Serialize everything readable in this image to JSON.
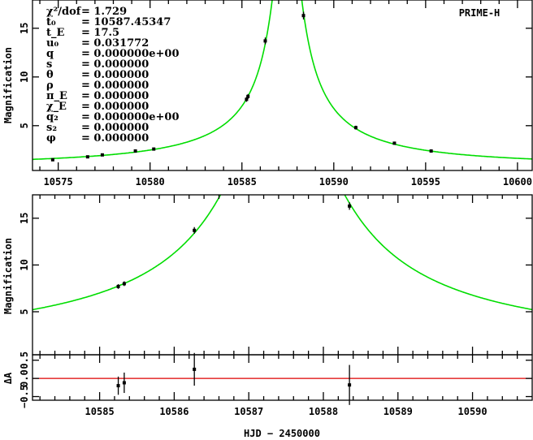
{
  "chart_data": [
    {
      "type": "line",
      "name": "full light curve",
      "title": "PRIME-H",
      "ylabel": "Magnification",
      "xlim": [
        10573.6,
        10600.8
      ],
      "ylim": [
        0.4,
        17.9
      ],
      "xticks": [
        10575,
        10580,
        10585,
        10590,
        10595,
        10600
      ],
      "yticks": [
        5,
        10,
        15
      ],
      "model": {
        "type": "PSPL",
        "t0": 10587.45347,
        "tE": 17.5,
        "u0": 0.031772,
        "color": "#00dd00"
      },
      "points": [
        [
          10574.7,
          1.5,
          0.1
        ],
        [
          10576.6,
          1.8,
          0.1
        ],
        [
          10577.4,
          2.0,
          0.1
        ],
        [
          10579.2,
          2.4,
          0.1
        ],
        [
          10580.2,
          2.6,
          0.1
        ],
        [
          10585.25,
          7.7,
          0.25
        ],
        [
          10585.33,
          8.0,
          0.25
        ],
        [
          10586.27,
          13.7,
          0.35
        ],
        [
          10588.35,
          16.3,
          0.4
        ],
        [
          10591.2,
          4.8,
          0.2
        ],
        [
          10593.3,
          3.2,
          0.15
        ],
        [
          10595.3,
          2.4,
          0.12
        ]
      ]
    },
    {
      "type": "line",
      "name": "zoomed light curve",
      "ylabel": "Magnification",
      "xlim": [
        10584.1,
        10590.8
      ],
      "ylim": [
        0.4,
        17.5
      ],
      "yticks": [
        5,
        10,
        15
      ],
      "points": [
        [
          10585.25,
          7.7,
          0.25
        ],
        [
          10585.33,
          8.0,
          0.25
        ],
        [
          10586.27,
          13.7,
          0.35
        ],
        [
          10588.35,
          16.3,
          0.4
        ]
      ]
    },
    {
      "type": "scatter",
      "name": "residuals",
      "ylabel": "ΔA",
      "xlabel": "HJD − 2450000",
      "xlim": [
        10584.1,
        10590.8
      ],
      "ylim": [
        -0.6,
        0.65
      ],
      "xticks": [
        10585,
        10586,
        10587,
        10588,
        10589,
        10590
      ],
      "yticks": [
        -0.5,
        0,
        0.5
      ],
      "yticklabels": [
        "−0.5",
        "0.0",
        "0.5"
      ],
      "zero_line_color": "#dd0000",
      "points": [
        [
          10585.25,
          -0.2,
          0.25
        ],
        [
          10585.33,
          -0.12,
          0.28
        ],
        [
          10586.27,
          0.25,
          0.45
        ],
        [
          10588.35,
          -0.18,
          0.55
        ]
      ]
    }
  ],
  "params": [
    {
      "sym": "χ²/dof",
      "val": "= 1.729"
    },
    {
      "sym": "t₀",
      "val": "= 10587.45347"
    },
    {
      "sym": "t_E",
      "val": "= 17.5"
    },
    {
      "sym": "u₀",
      "val": "= 0.031772"
    },
    {
      "sym": "q",
      "val": "= 0.000000e+00"
    },
    {
      "sym": "s",
      "val": "= 0.000000"
    },
    {
      "sym": "θ",
      "val": "= 0.000000"
    },
    {
      "sym": "ρ",
      "val": "= 0.000000"
    },
    {
      "sym": "π_E",
      "val": "= 0.000000"
    },
    {
      "sym": "χ_E",
      "val": "= 0.000000"
    },
    {
      "sym": "q₂",
      "val": "= 0.000000e+00"
    },
    {
      "sym": "s₂",
      "val": "= 0.000000"
    },
    {
      "sym": "φ",
      "val": "= 0.000000"
    }
  ]
}
